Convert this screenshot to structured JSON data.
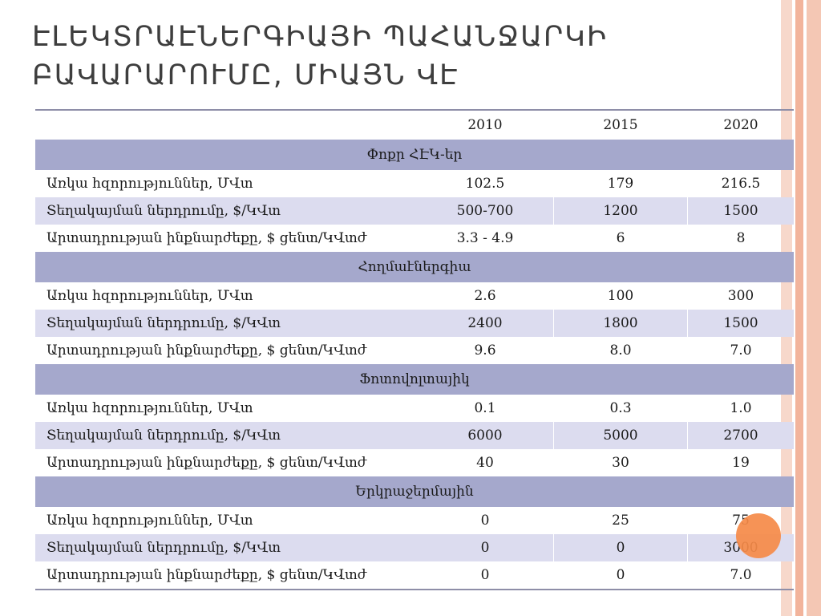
{
  "slide": {
    "title": "ԷԼԵԿՏՐԱԷՆԵՐԳԻԱՅԻ ՊԱՀԱՆՋԱՐԿԻ ԲԱՎԱՐԱՐՈՒՄԸ, ՄԻԱՅՆ ՎԷ",
    "accent_colors": {
      "stripes": [
        "#f4c7b4",
        "#f2b49c",
        "#f7d8cb"
      ],
      "section_header": "#a5a8cc",
      "alt_row": "#dcdcef",
      "rule": "#8e8ea8",
      "dot": "#f58a48"
    }
  },
  "table": {
    "years": [
      "2010",
      "2015",
      "2020"
    ],
    "sections": [
      {
        "name": "Փոքր ՀԷԿ-եր",
        "rows": [
          {
            "label": "Առկա հզորություններ, ՄՎտ",
            "values": [
              "102.5",
              "179",
              "216.5"
            ]
          },
          {
            "label": "Տեղակայման ներդրումը, $/ԿՎտ",
            "values": [
              "500-700",
              "1200",
              "1500"
            ]
          },
          {
            "label": "Արտադրության ինքնարժեքը, $ ցենտ/ԿՎտժ",
            "values": [
              "3.3 - 4.9",
              "6",
              "8"
            ]
          }
        ]
      },
      {
        "name": "Հողմաէներգիա",
        "rows": [
          {
            "label": "Առկա հզորություններ, ՄՎտ",
            "values": [
              "2.6",
              "100",
              "300"
            ]
          },
          {
            "label": "Տեղակայման ներդրումը, $/ԿՎտ",
            "values": [
              "2400",
              "1800",
              "1500"
            ]
          },
          {
            "label": "Արտադրության ինքնարժեքը, $ ցենտ/ԿՎտժ",
            "values": [
              "9.6",
              "8.0",
              "7.0"
            ]
          }
        ]
      },
      {
        "name": "Ֆոտովոլտայիկ",
        "rows": [
          {
            "label": "Առկա հզորություններ, ՄՎտ",
            "values": [
              "0.1",
              "0.3",
              "1.0"
            ]
          },
          {
            "label": "Տեղակայման ներդրումը, $/ԿՎտ",
            "values": [
              "6000",
              "5000",
              "2700"
            ]
          },
          {
            "label": "Արտադրության ինքնարժեքը, $ ցենտ/ԿՎտժ",
            "values": [
              "40",
              "30",
              "19"
            ]
          }
        ]
      },
      {
        "name": "Երկրաջերմային",
        "rows": [
          {
            "label": "Առկա հզորություններ, ՄՎտ",
            "values": [
              "0",
              "25",
              "75"
            ]
          },
          {
            "label": "Տեղակայման ներդրումը, $/ԿՎտ",
            "values": [
              "0",
              "0",
              "3000"
            ]
          },
          {
            "label": "Արտադրության ինքնարժեքը, $ ցենտ/ԿՎտժ",
            "values": [
              "0",
              "0",
              "7.0"
            ]
          }
        ]
      }
    ]
  }
}
